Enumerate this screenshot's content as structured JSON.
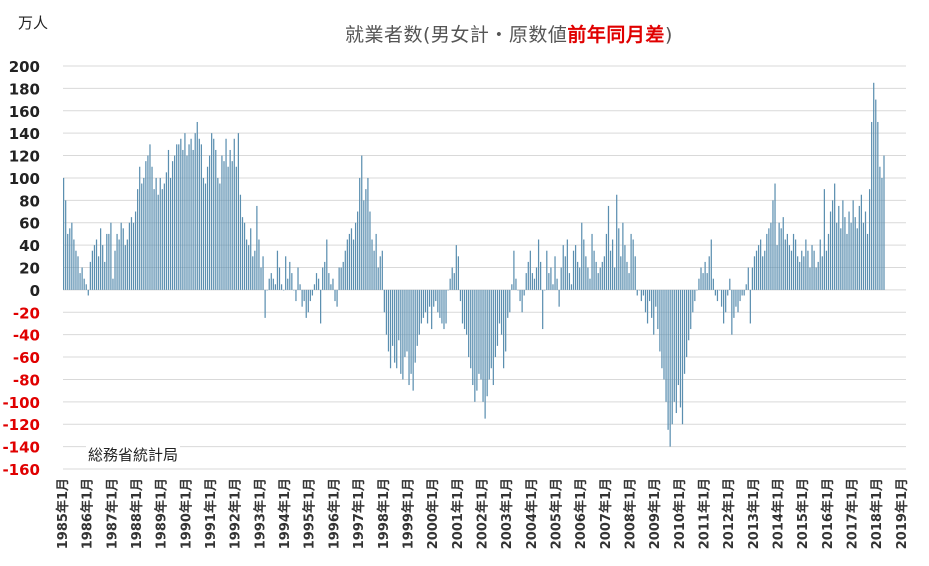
{
  "chart_data": {
    "type": "bar",
    "title": {
      "prefix": "就業者数(男女計・原数値",
      "highlight": "前年同月差",
      "suffix": ")"
    },
    "unit_label": "万人",
    "source": "総務省統計局",
    "ylim": [
      -160,
      200
    ],
    "yticks": [
      "200",
      "180",
      "160",
      "140",
      "120",
      "100",
      "80",
      "60",
      "40",
      "20",
      "0",
      "-20",
      "-40",
      "-60",
      "-80",
      "-100",
      "-120",
      "-140",
      "-160"
    ],
    "xtick_labels": [
      "1985年1月",
      "1986年1月",
      "1987年1月",
      "1988年1月",
      "1989年1月",
      "1990年1月",
      "1991年1月",
      "1992年1月",
      "1993年1月",
      "1994年1月",
      "1995年1月",
      "1996年1月",
      "1997年1月",
      "1998年1月",
      "1999年1月",
      "2000年1月",
      "2001年1月",
      "2002年1月",
      "2003年1月",
      "2004年1月",
      "2005年1月",
      "2006年1月",
      "2007年1月",
      "2008年1月",
      "2009年1月",
      "2010年1月",
      "2011年1月",
      "2012年1月",
      "2013年1月",
      "2014年1月",
      "2015年1月",
      "2016年1月",
      "2017年1月",
      "2018年1月",
      "2019年1月"
    ],
    "grid": true,
    "colors": {
      "bar": "#5b8fb0",
      "grid": "#d9d9d9",
      "positive_tick": "#222222",
      "negative_tick": "#e00000",
      "title_highlight": "#e00000"
    },
    "series": [
      {
        "start": "1985-01",
        "frequency": "monthly",
        "values": [
          100,
          80,
          50,
          55,
          60,
          45,
          35,
          30,
          15,
          20,
          10,
          5,
          -5,
          25,
          35,
          40,
          45,
          30,
          55,
          40,
          25,
          50,
          50,
          60,
          10,
          35,
          50,
          45,
          60,
          55,
          40,
          45,
          60,
          65,
          60,
          70,
          90,
          110,
          95,
          100,
          115,
          120,
          130,
          110,
          90,
          100,
          85,
          100,
          90,
          95,
          105,
          125,
          100,
          115,
          120,
          130,
          130,
          135,
          125,
          140,
          120,
          130,
          135,
          125,
          140,
          150,
          135,
          130,
          100,
          95,
          110,
          120,
          140,
          135,
          125,
          100,
          95,
          120,
          115,
          135,
          110,
          125,
          115,
          135,
          110,
          140,
          85,
          65,
          60,
          45,
          40,
          55,
          30,
          35,
          75,
          45,
          20,
          30,
          -25,
          0,
          10,
          15,
          10,
          5,
          35,
          20,
          5,
          0,
          30,
          10,
          25,
          15,
          0,
          -10,
          20,
          5,
          -15,
          -10,
          -25,
          -20,
          -10,
          -5,
          5,
          15,
          10,
          -30,
          20,
          25,
          45,
          15,
          5,
          10,
          -10,
          -15,
          20,
          20,
          25,
          35,
          45,
          50,
          55,
          45,
          60,
          70,
          100,
          120,
          80,
          90,
          100,
          70,
          45,
          35,
          50,
          20,
          30,
          35,
          -20,
          -40,
          -55,
          -70,
          -50,
          -65,
          -70,
          -45,
          -75,
          -80,
          -60,
          -55,
          -85,
          -75,
          -90,
          -65,
          -50,
          -40,
          -30,
          -25,
          -20,
          -30,
          -15,
          -35,
          -15,
          -10,
          -20,
          -25,
          -30,
          -35,
          -30,
          0,
          10,
          20,
          15,
          40,
          30,
          -10,
          -30,
          -35,
          -40,
          -60,
          -70,
          -85,
          -100,
          -90,
          -75,
          -80,
          -100,
          -115,
          -95,
          -80,
          -70,
          -85,
          -60,
          -50,
          -30,
          -40,
          -70,
          -55,
          -25,
          -20,
          5,
          35,
          10,
          0,
          -10,
          -20,
          -5,
          15,
          25,
          35,
          15,
          10,
          20,
          45,
          25,
          -35,
          0,
          35,
          15,
          20,
          5,
          30,
          10,
          -15,
          20,
          40,
          30,
          45,
          15,
          5,
          35,
          40,
          25,
          20,
          60,
          45,
          30,
          20,
          10,
          50,
          35,
          25,
          15,
          20,
          25,
          30,
          50,
          75,
          35,
          45,
          20,
          85,
          55,
          30,
          60,
          40,
          25,
          15,
          50,
          45,
          30,
          -5,
          0,
          -10,
          -5,
          -20,
          -30,
          -10,
          -25,
          -40,
          -15,
          -35,
          -55,
          -70,
          -80,
          -100,
          -125,
          -140,
          -120,
          -100,
          -110,
          -85,
          -105,
          -120,
          -75,
          -60,
          -45,
          -35,
          -20,
          -10,
          0,
          10,
          20,
          15,
          25,
          15,
          30,
          45,
          10,
          -5,
          -10,
          0,
          -15,
          -30,
          -20,
          -5,
          10,
          -40,
          -25,
          -15,
          -20,
          -10,
          -5,
          -5,
          5,
          20,
          -30,
          20,
          30,
          35,
          40,
          45,
          30,
          35,
          50,
          55,
          60,
          80,
          95,
          40,
          60,
          55,
          65,
          45,
          50,
          40,
          35,
          50,
          45,
          30,
          25,
          35,
          30,
          45,
          35,
          20,
          40,
          35,
          20,
          25,
          45,
          30,
          90,
          35,
          50,
          70,
          80,
          95,
          60,
          75,
          55,
          80,
          65,
          50,
          70,
          60,
          80,
          65,
          55,
          75,
          85,
          60,
          70,
          50,
          90,
          150,
          185,
          170,
          150,
          110,
          100,
          120
        ]
      }
    ]
  }
}
